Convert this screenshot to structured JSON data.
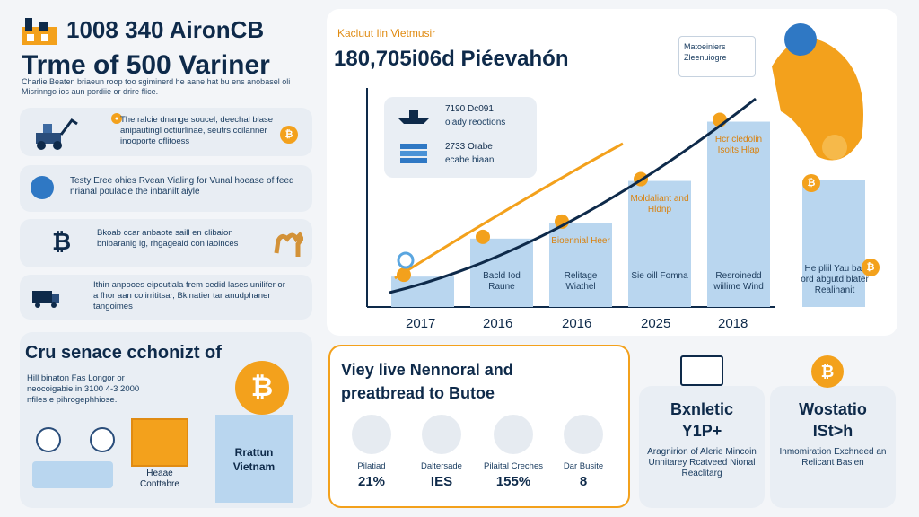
{
  "left_header": {
    "title_line1": "1008 340 AironCB",
    "title_line2": "Trme of 500 Variner",
    "intro": "Charlie Beaten briaeun roop too sgiminerd he aane hat bu ens anobasel oli Misrinngo ios aun pordiie or drire flice."
  },
  "left_rows": [
    {
      "text": "The ralcie dnange soucel, deechal blase anipautingl octiurlinae, seutrs ccilanner inooporte oflitoess",
      "icon": "machine-icon"
    },
    {
      "text": "Testy Eree ohies Rvean Vialing for Vunal hoease of feed nrianal poulacie the inbanilt aiyle",
      "icon": "globe-icon"
    },
    {
      "text": "Bkoab ccar anbaote saill en clibaion bnibaranig lg, rhgageald con laoinces",
      "icon": "bitcoin-symbol-icon"
    },
    {
      "text": "Ithin anpooes eipoutiala frem cedid lases unilifer or a fhor aan colirrititsar, Bkinatier tar anudphaner tangoimes",
      "icon": "truck-icon"
    }
  ],
  "chart_card": {
    "kicker": "Kacluut Iin Vietmusir",
    "headline": "180,705i06d Piéevahón",
    "legend": [
      {
        "value": "7190 Dc091",
        "label": "oiady reoctions",
        "icon": "ship-icon"
      },
      {
        "value": "2733 Orabe",
        "label": "ecabe biaan",
        "icon": "stack-icon"
      }
    ],
    "callout": "Matoeiniers Zleenuiogre"
  },
  "chart_data": {
    "type": "bar",
    "categories": [
      "2017",
      "2016",
      "2016",
      "2025",
      "2018"
    ],
    "values": [
      20,
      45,
      55,
      83,
      122
    ],
    "bar_labels": [
      {
        "top": "",
        "bottom": ""
      },
      {
        "top": "",
        "bottom": "Bacld Iod Raune"
      },
      {
        "top": "Bioennial Heer",
        "bottom": "Relitage Wiathel"
      },
      {
        "top": "Moldaliant and Hldnp",
        "bottom": "Sie oill Fomna"
      },
      {
        "top": "Hcr cledolin Isoits Hlap",
        "bottom": "Resroinedd wiilime Wind"
      }
    ],
    "side_bar": {
      "top": "He pliil Yau bar ord abgutd blater Realihanit"
    }
  },
  "bottom_left": {
    "title": "Cru senace cchonizt of",
    "text": "Hill binaton Fas Longor or neocoigabie in 3100 4-3 2000 nfiles e pihrogephhiose.",
    "box_top": "Rrattun Vietnam",
    "box_bottom": "Heaae Conttabre"
  },
  "bottom_mid": {
    "title_line1": "Viey live Nennoral and",
    "title_line2": "preatbread to Butoe",
    "stats": [
      {
        "label": "Pilatiad",
        "value": "21%",
        "icon": "chat-icon"
      },
      {
        "label": "Daltersade",
        "value": "IES",
        "icon": "bank-icon"
      },
      {
        "label": "Pilaital Creches",
        "value": "155%",
        "icon": "swap-icon"
      },
      {
        "label": "Dar Busite",
        "value": "8",
        "icon": "gift-icon"
      }
    ]
  },
  "bottom_right": [
    {
      "title_line1": "Bxnletic",
      "title_line2": "Y1P+",
      "text": "Aragnirion of Alerie Mincoin Unnitarey Rcatveed Nional Reaclitarg",
      "icon": "laptop-icon"
    },
    {
      "title_line1": "Wostatio",
      "title_line2": "ISt>h",
      "text": "Inmomiration Exchneed an Relicant Basien",
      "icon": "bitcoin-coin-icon"
    }
  ],
  "colors": {
    "accent": "#f3a11c",
    "navy": "#0e2a4a",
    "bar": "#b9d6ef",
    "card": "#e8edf3"
  }
}
